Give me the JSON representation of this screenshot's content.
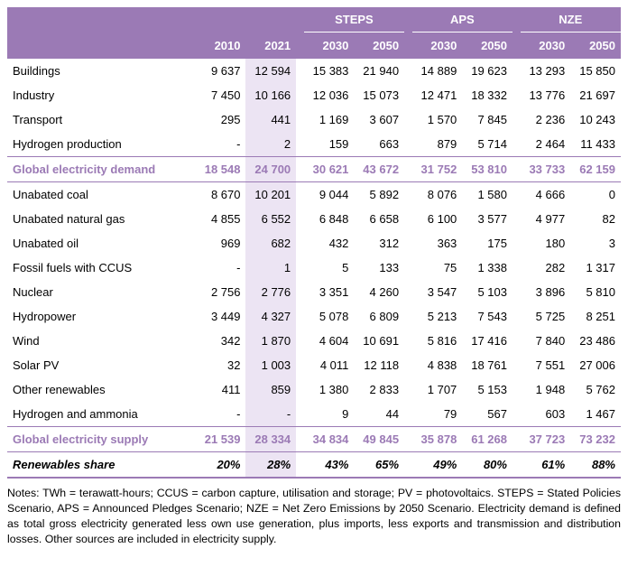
{
  "header": {
    "groups": [
      "STEPS",
      "APS",
      "NZE"
    ],
    "years": [
      "2010",
      "2021",
      "2030",
      "2050",
      "2030",
      "2050",
      "2030",
      "2050"
    ]
  },
  "demand_rows": [
    {
      "label": "Buildings",
      "values": [
        "9 637",
        "12 594",
        "15 383",
        "21 940",
        "14 889",
        "19 623",
        "13 293",
        "15 850"
      ]
    },
    {
      "label": "Industry",
      "values": [
        "7 450",
        "10 166",
        "12 036",
        "15 073",
        "12 471",
        "18 332",
        "13 776",
        "21 697"
      ]
    },
    {
      "label": "Transport",
      "values": [
        "295",
        "441",
        "1 169",
        "3 607",
        "1 570",
        "7 845",
        "2 236",
        "10 243"
      ]
    },
    {
      "label": "Hydrogen production",
      "values": [
        "-",
        "2",
        "159",
        "663",
        "879",
        "5 714",
        "2 464",
        "11 433"
      ]
    }
  ],
  "demand_total": {
    "label": "Global electricity demand",
    "values": [
      "18 548",
      "24 700",
      "30 621",
      "43 672",
      "31 752",
      "53 810",
      "33 733",
      "62 159"
    ]
  },
  "supply_rows": [
    {
      "label": "Unabated coal",
      "values": [
        "8 670",
        "10 201",
        "9 044",
        "5 892",
        "8 076",
        "1 580",
        "4 666",
        "0"
      ]
    },
    {
      "label": "Unabated natural gas",
      "values": [
        "4 855",
        "6 552",
        "6 848",
        "6 658",
        "6 100",
        "3 577",
        "4 977",
        "82"
      ]
    },
    {
      "label": "Unabated oil",
      "values": [
        "969",
        "682",
        "432",
        "312",
        "363",
        "175",
        "180",
        "3"
      ]
    },
    {
      "label": "Fossil fuels with CCUS",
      "values": [
        "-",
        "1",
        "5",
        "133",
        "75",
        "1 338",
        "282",
        "1 317"
      ]
    },
    {
      "label": "Nuclear",
      "values": [
        "2 756",
        "2 776",
        "3 351",
        "4 260",
        "3 547",
        "5 103",
        "3 896",
        "5 810"
      ]
    },
    {
      "label": "Hydropower",
      "values": [
        "3 449",
        "4 327",
        "5 078",
        "6 809",
        "5 213",
        "7 543",
        "5 725",
        "8 251"
      ]
    },
    {
      "label": "Wind",
      "values": [
        "342",
        "1 870",
        "4 604",
        "10 691",
        "5 816",
        "17 416",
        "7 840",
        "23 486"
      ]
    },
    {
      "label": "Solar PV",
      "values": [
        "32",
        "1 003",
        "4 011",
        "12 118",
        "4 838",
        "18 761",
        "7 551",
        "27 006"
      ]
    },
    {
      "label": "Other renewables",
      "values": [
        "411",
        "859",
        "1 380",
        "2 833",
        "1 707",
        "5 153",
        "1 948",
        "5 762"
      ]
    },
    {
      "label": "Hydrogen and ammonia",
      "values": [
        "-",
        "-",
        "9",
        "44",
        "79",
        "567",
        "603",
        "1 467"
      ]
    }
  ],
  "supply_total": {
    "label": "Global electricity supply",
    "values": [
      "21 539",
      "28 334",
      "34 834",
      "49 845",
      "35 878",
      "61 268",
      "37 723",
      "73 232"
    ]
  },
  "share_row": {
    "label": "Renewables share",
    "values": [
      "20%",
      "28%",
      "43%",
      "65%",
      "49%",
      "80%",
      "61%",
      "88%"
    ]
  },
  "notes": "Notes: TWh = terawatt-hours; CCUS = carbon capture, utilisation and storage; PV = photovoltaics. STEPS = Stated Policies Scenario, APS = Announced Pledges Scenario; NZE = Net Zero Emissions by 2050 Scenario. Electricity demand is defined as total gross electricity generated less own use generation, plus imports, less exports and transmission and distribution losses. Other sources are included in electricity supply.",
  "colors": {
    "header_bg": "#9b7ab5",
    "highlight_col": "#ece4f3",
    "total_text": "#9b7ab5"
  }
}
